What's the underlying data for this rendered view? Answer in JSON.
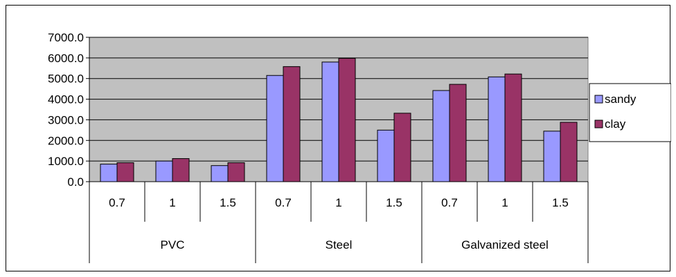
{
  "chart_data": {
    "type": "bar",
    "title": "",
    "xlabel": "",
    "ylabel": "",
    "ylim": [
      0,
      7000
    ],
    "yticks": [
      "0.0",
      "1000.0",
      "2000.0",
      "3000.0",
      "4000.0",
      "5000.0",
      "6000.0",
      "7000.0"
    ],
    "groups": [
      {
        "label": "PVC",
        "categories": [
          "0.7",
          "1",
          "1.5"
        ]
      },
      {
        "label": "Steel",
        "categories": [
          "0.7",
          "1",
          "1.5"
        ]
      },
      {
        "label": "Galvanized steel",
        "categories": [
          "0.7",
          "1",
          "1.5"
        ]
      }
    ],
    "series": [
      {
        "name": "sandy",
        "color": "#9999ff",
        "values": [
          850,
          1000,
          780,
          5150,
          5800,
          2500,
          4420,
          5080,
          2450
        ]
      },
      {
        "name": "clay",
        "color": "#993366",
        "values": [
          920,
          1120,
          920,
          5580,
          5980,
          3320,
          4720,
          5220,
          2880
        ]
      }
    ],
    "grid": true,
    "plot_background": "#c0c0c0",
    "legend_position": "right"
  }
}
